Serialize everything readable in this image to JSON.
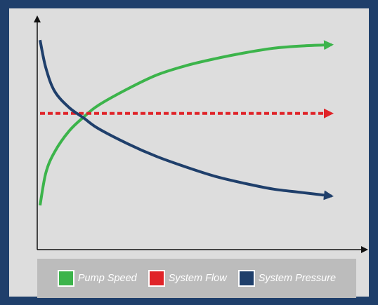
{
  "chart_data": {
    "type": "line",
    "title": "",
    "xlabel": "",
    "ylabel": "",
    "grid": false,
    "legend_position": "bottom",
    "xlim": [
      0,
      100
    ],
    "ylim": [
      0,
      100
    ],
    "series": [
      {
        "name": "Pump Speed",
        "color": "#3cb44b",
        "x": [
          0,
          2,
          5,
          10,
          15,
          20,
          30,
          40,
          50,
          60,
          70,
          80,
          90,
          100
        ],
        "y": [
          19,
          33,
          42,
          51,
          57,
          62,
          69,
          75,
          79,
          82,
          84.5,
          86.5,
          87.5,
          88
        ]
      },
      {
        "name": "System Flow",
        "color": "#e02328",
        "x": [
          0,
          100
        ],
        "y": [
          58.5,
          58.5
        ]
      },
      {
        "name": "System Pressure",
        "color": "#1f3f6b",
        "x": [
          0,
          2,
          5,
          10,
          15,
          20,
          30,
          40,
          50,
          60,
          70,
          80,
          90,
          100
        ],
        "y": [
          90,
          78,
          68,
          61,
          56.5,
          52,
          45.5,
          40,
          35.5,
          31.5,
          28.5,
          26,
          24.5,
          23
        ]
      }
    ]
  }
}
